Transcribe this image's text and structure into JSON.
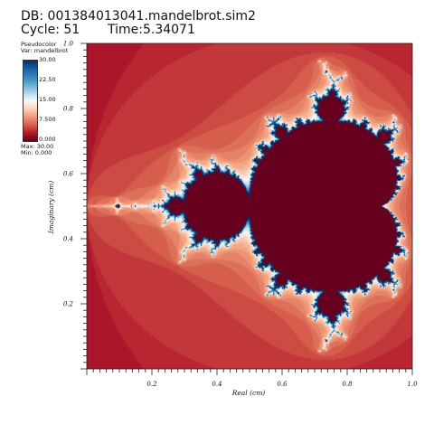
{
  "header": {
    "db": "DB: 001384013041.mandelbrot.sim2",
    "cycle": "Cycle: 51",
    "time": "Time:5.34071"
  },
  "legend": {
    "line1": "Pseudocolor",
    "line2": "Var: mandelbrot",
    "ticks": [
      "30.00",
      "22.50",
      "15.00",
      "7.500",
      "0.000"
    ],
    "max": "Max: 30.00",
    "min": "Min: 0.000"
  },
  "chart_data": {
    "type": "heatmap",
    "xlabel": "Real (cm)",
    "ylabel": "Imaginary (cm)",
    "xlim": [
      0.0,
      1.0
    ],
    "ylim": [
      0.0,
      1.0
    ],
    "xticks": [
      "0.2",
      "0.4",
      "0.6",
      "0.8",
      "1.0"
    ],
    "yticks": [
      "0.2",
      "0.4",
      "0.6",
      "0.8",
      "1.0"
    ],
    "x_values": [
      0.2,
      0.4,
      0.6,
      0.8,
      1.0
    ],
    "y_values": [
      0.2,
      0.4,
      0.6,
      0.8,
      1.0
    ],
    "colorbar": {
      "min": 0,
      "max": 30,
      "ticks": [
        30,
        22.5,
        15,
        7.5,
        0
      ]
    },
    "field": "mandelbrot"
  },
  "colors": {
    "set": "#67001f",
    "outer": "#c0252b",
    "accent_blue": "#2166ac",
    "white": "#f7f7f7"
  }
}
